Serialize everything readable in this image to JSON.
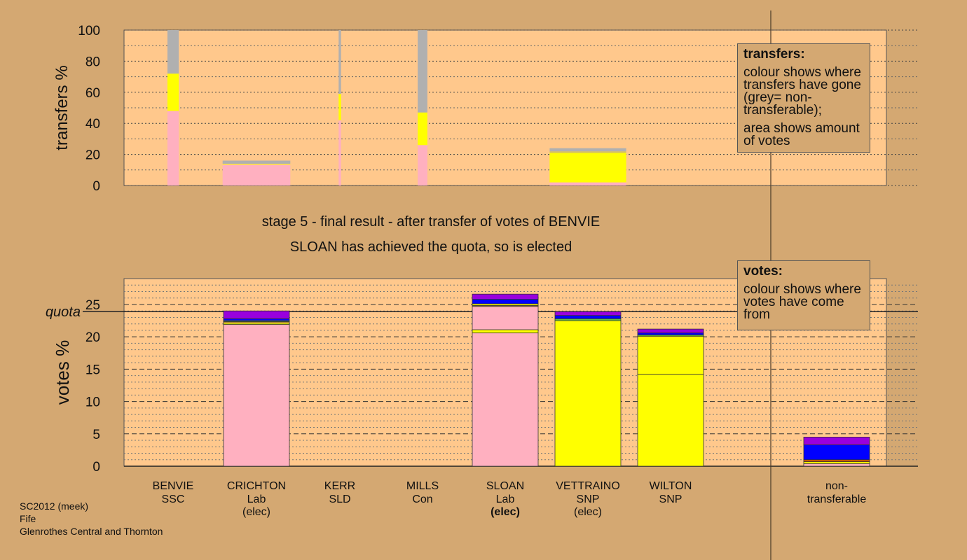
{
  "chart_data": [
    {
      "type": "bar",
      "stacked": true,
      "ylabel": "transfers %",
      "ylim": [
        0,
        100
      ],
      "yticks": [
        0,
        20,
        40,
        60,
        80,
        100
      ],
      "categories": [
        "BENVIE SSC",
        "CRICHTON Lab",
        "KERR SLD",
        "MILLS Con",
        "SLOAN Lab",
        "VETTRAINO SNP",
        "WILTON SNP",
        "non-transferable"
      ],
      "bars": [
        {
          "category": "BENVIE SSC",
          "width_votes": 1.4,
          "segments": [
            {
              "from": "Lab",
              "color": "#ffb0c0",
              "value": 48
            },
            {
              "from": "SNP",
              "color": "#ffff00",
              "value": 24
            },
            {
              "from": "non-transferable",
              "color": "#b0b0b0",
              "value": 28
            }
          ]
        },
        {
          "category": "CRICHTON Lab",
          "width_votes": 8.4,
          "segments": [
            {
              "from": "Lab",
              "color": "#ffb0c0",
              "value": 13.5
            },
            {
              "from": "SNP",
              "color": "#ffff00",
              "value": 0.5
            },
            {
              "from": "non-transferable",
              "color": "#b0b0b0",
              "value": 2
            }
          ]
        },
        {
          "category": "KERR SLD",
          "width_votes": 0.3,
          "segments": [
            {
              "from": "Lab",
              "color": "#ffb0c0",
              "value": 42
            },
            {
              "from": "SNP",
              "color": "#ffff00",
              "value": 17
            },
            {
              "from": "non-transferable",
              "color": "#b0b0b0",
              "value": 41
            }
          ]
        },
        {
          "category": "MILLS Con",
          "width_votes": 1.2,
          "segments": [
            {
              "from": "Lab",
              "color": "#ffb0c0",
              "value": 26
            },
            {
              "from": "SNP",
              "color": "#ffff00",
              "value": 21
            },
            {
              "from": "non-transferable",
              "color": "#b0b0b0",
              "value": 53
            }
          ]
        },
        {
          "category": "VETTRAINO SNP",
          "width_votes": 9.5,
          "segments": [
            {
              "from": "Lab",
              "color": "#ffb0c0",
              "value": 2
            },
            {
              "from": "SNP",
              "color": "#ffff00",
              "value": 19
            },
            {
              "from": "other",
              "color": "#d4c060",
              "value": 1
            },
            {
              "from": "non-transferable",
              "color": "#b0b0b0",
              "value": 2
            }
          ]
        }
      ]
    },
    {
      "type": "bar",
      "stacked": true,
      "ylabel": "votes %",
      "ylim": [
        0,
        29
      ],
      "yticks": [
        0,
        5,
        10,
        15,
        20,
        25
      ],
      "quota": 23.9,
      "quota_label": "quota",
      "categories": [
        "BENVIE SSC",
        "CRICHTON Lab",
        "KERR SLD",
        "MILLS Con",
        "SLOAN Lab",
        "VETTRAINO SNP",
        "WILTON SNP",
        "non-transferable"
      ],
      "bars": [
        {
          "category": "BENVIE SSC",
          "segments": []
        },
        {
          "category": "CRICHTON Lab",
          "segments": [
            {
              "color": "#ffb0c0",
              "value": 21.9
            },
            {
              "color": "#ffff00",
              "value": 0.25
            },
            {
              "color": "#d4a030",
              "value": 0.2
            },
            {
              "color": "#60c040",
              "value": 0.15
            },
            {
              "color": "#0000ff",
              "value": 0.3
            },
            {
              "color": "#9900dd",
              "value": 1.2
            }
          ]
        },
        {
          "category": "KERR SLD",
          "segments": []
        },
        {
          "category": "MILLS Con",
          "segments": []
        },
        {
          "category": "SLOAN Lab",
          "segments": [
            {
              "color": "#ffb0c0",
              "value": 20.6
            },
            {
              "color": "#ffff00",
              "value": 0.5
            },
            {
              "color": "#ffb0c0",
              "value": 3.6
            },
            {
              "color": "#d4a030",
              "value": 0.15
            },
            {
              "color": "#ffff00",
              "value": 0.25
            },
            {
              "color": "#0000ff",
              "value": 0.7
            },
            {
              "color": "#9900dd",
              "value": 0.8
            }
          ]
        },
        {
          "category": "VETTRAINO SNP",
          "segments": [
            {
              "color": "#ffff00",
              "value": 22.5
            },
            {
              "color": "#60c040",
              "value": 0.3
            },
            {
              "color": "#0000ff",
              "value": 0.5
            },
            {
              "color": "#9900dd",
              "value": 0.6
            }
          ]
        },
        {
          "category": "WILTON SNP",
          "segments": [
            {
              "color": "#ffff00",
              "value": 14.2
            },
            {
              "color": "#ffff00",
              "value": 5.9
            },
            {
              "color": "#60c040",
              "value": 0.2
            },
            {
              "color": "#0000ff",
              "value": 0.3
            },
            {
              "color": "#9900dd",
              "value": 0.6
            }
          ]
        },
        {
          "category": "non-transferable",
          "segments": [
            {
              "color": "#ffb0c0",
              "value": 0.4
            },
            {
              "color": "#ffff00",
              "value": 0.3
            },
            {
              "color": "#e06000",
              "value": 0.3
            },
            {
              "color": "#0000ff",
              "value": 2.3
            },
            {
              "color": "#9900dd",
              "value": 1.2
            }
          ]
        }
      ]
    }
  ],
  "candidates": [
    {
      "name": "BENVIE",
      "party": "SSC",
      "status": ""
    },
    {
      "name": "CRICHTON",
      "party": "Lab",
      "status": "(elec)"
    },
    {
      "name": "KERR",
      "party": "SLD",
      "status": ""
    },
    {
      "name": "MILLS",
      "party": "Con",
      "status": ""
    },
    {
      "name": "SLOAN",
      "party": "Lab",
      "status": "(elec)"
    },
    {
      "name": "VETTRAINO",
      "party": "SNP",
      "status": "(elec)"
    },
    {
      "name": "WILTON",
      "party": "SNP",
      "status": ""
    }
  ],
  "nontransferable_label": [
    "non-",
    "transferable"
  ],
  "stage": {
    "line1": "stage 5 - final result - after transfer of votes of BENVIE",
    "line2": "SLOAN has achieved the quota, so is elected"
  },
  "legend_transfers": {
    "title": "transfers:",
    "p1": "colour shows where transfers have gone (grey= non-transferable);",
    "p2": "area shows amount of votes"
  },
  "legend_votes": {
    "title": "votes:",
    "p1": "colour shows where votes have come from"
  },
  "footer": {
    "line1": "SC2012 (meek)",
    "line2": "Fife",
    "line3": "Glenrothes Central and Thornton"
  },
  "colors": {
    "background": "#d4a872",
    "plot_background": "#ffc88c"
  }
}
